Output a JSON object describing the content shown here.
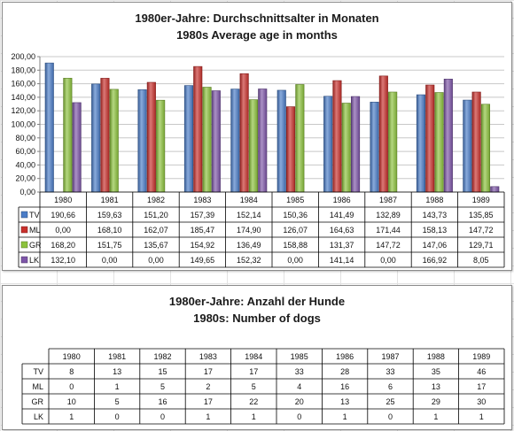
{
  "chart_data": [
    {
      "type": "bar",
      "title": "1980er-Jahre: Durchschnittsalter in Monaten",
      "subtitle": "1980s Average age in months",
      "categories": [
        "1980",
        "1981",
        "1982",
        "1983",
        "1984",
        "1985",
        "1986",
        "1987",
        "1988",
        "1989"
      ],
      "ylim": [
        0,
        200
      ],
      "yticks": [
        "0,00",
        "20,00",
        "40,00",
        "60,00",
        "80,00",
        "100,00",
        "120,00",
        "140,00",
        "160,00",
        "180,00",
        "200,00"
      ],
      "grid": true,
      "series": [
        {
          "name": "TV",
          "color": "#4a7cc7",
          "values": [
            190.66,
            159.63,
            151.2,
            157.39,
            152.14,
            150.36,
            141.49,
            132.89,
            143.73,
            135.85
          ],
          "labels": [
            "190,66",
            "159,63",
            "151,20",
            "157,39",
            "152,14",
            "150,36",
            "141,49",
            "132,89",
            "143,73",
            "135,85"
          ]
        },
        {
          "name": "ML",
          "color": "#c8302c",
          "values": [
            0.0,
            168.1,
            162.07,
            185.47,
            174.9,
            126.07,
            164.63,
            171.44,
            158.13,
            147.72
          ],
          "labels": [
            "0,00",
            "168,10",
            "162,07",
            "185,47",
            "174,90",
            "126,07",
            "164,63",
            "171,44",
            "158,13",
            "147,72"
          ]
        },
        {
          "name": "GR",
          "color": "#8cc23c",
          "values": [
            168.2,
            151.75,
            135.67,
            154.92,
            136.49,
            158.88,
            131.37,
            147.72,
            147.06,
            129.71
          ],
          "labels": [
            "168,20",
            "151,75",
            "135,67",
            "154,92",
            "136,49",
            "158,88",
            "131,37",
            "147,72",
            "147,06",
            "129,71"
          ]
        },
        {
          "name": "LK",
          "color": "#7d55a8",
          "values": [
            132.1,
            0.0,
            0.0,
            149.65,
            152.32,
            0.0,
            141.14,
            0.0,
            166.92,
            8.05
          ],
          "labels": [
            "132,10",
            "0,00",
            "0,00",
            "149,65",
            "152,32",
            "0,00",
            "141,14",
            "0,00",
            "166,92",
            "8,05"
          ]
        }
      ]
    },
    {
      "type": "table",
      "title": "1980er-Jahre: Anzahl der Hunde",
      "subtitle": "1980s: Number of dogs",
      "categories": [
        "1980",
        "1981",
        "1982",
        "1983",
        "1984",
        "1985",
        "1986",
        "1987",
        "1988",
        "1989"
      ],
      "series": [
        {
          "name": "TV",
          "values": [
            8,
            13,
            15,
            17,
            17,
            33,
            28,
            33,
            35,
            46
          ]
        },
        {
          "name": "ML",
          "values": [
            0,
            1,
            5,
            2,
            5,
            4,
            16,
            6,
            13,
            17
          ]
        },
        {
          "name": "GR",
          "values": [
            10,
            5,
            16,
            17,
            22,
            20,
            13,
            25,
            29,
            30
          ]
        },
        {
          "name": "LK",
          "values": [
            1,
            0,
            0,
            1,
            1,
            0,
            1,
            0,
            1,
            1
          ]
        }
      ]
    }
  ]
}
